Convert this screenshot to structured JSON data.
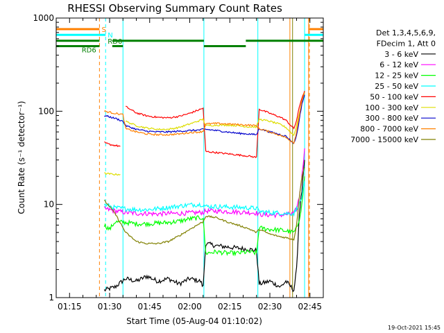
{
  "chart_data": {
    "type": "line",
    "title": "RHESSI Observing Summary Count Rates",
    "xlabel": "Start Time (05-Aug-04 01:10:02)",
    "ylabel": "Count Rate (s⁻¹ detector⁻¹)",
    "yscale": "log",
    "ylim": [
      1,
      1000
    ],
    "xlim_min": [
      70,
      170
    ],
    "x_ticks": [
      {
        "min": 75,
        "label": "01:15"
      },
      {
        "min": 90,
        "label": "01:30"
      },
      {
        "min": 105,
        "label": "01:45"
      },
      {
        "min": 120,
        "label": "02:00"
      },
      {
        "min": 135,
        "label": "02:15"
      },
      {
        "min": 150,
        "label": "02:30"
      },
      {
        "min": 165,
        "label": "02:45"
      }
    ],
    "y_ticks": [
      {
        "value": 1,
        "label": "1"
      },
      {
        "value": 10,
        "label": "10"
      },
      {
        "value": 100,
        "label": "100"
      },
      {
        "value": 1000,
        "label": "1000"
      }
    ],
    "legend_header": [
      "Det 1,3,4,5,6,9,",
      "FDecim 1, Att 0"
    ],
    "legend_placement": "right",
    "grid": false,
    "series": [
      {
        "name": "3 - 6 keV",
        "color": "#000000",
        "points": [
          [
            87,
            null
          ],
          [
            88,
            1.2
          ],
          [
            92,
            1.3
          ],
          [
            96,
            1.6
          ],
          [
            100,
            1.5
          ],
          [
            104,
            1.7
          ],
          [
            108,
            1.5
          ],
          [
            112,
            1.6
          ],
          [
            116,
            1.4
          ],
          [
            120,
            1.6
          ],
          [
            124,
            1.5
          ],
          [
            125,
            1.3
          ],
          [
            126,
            3.8
          ],
          [
            130,
            3.6
          ],
          [
            134,
            3.5
          ],
          [
            138,
            3.4
          ],
          [
            142,
            3.3
          ],
          [
            145,
            3.2
          ],
          [
            146,
            1.4
          ],
          [
            150,
            1.5
          ],
          [
            154,
            1.3
          ],
          [
            156,
            1.5
          ],
          [
            159,
            1.2
          ],
          [
            160,
            2.0
          ],
          [
            161,
            8.0
          ],
          [
            162,
            14.0
          ],
          [
            163,
            30.0
          ]
        ]
      },
      {
        "name": "6 - 12 keV",
        "color": "#ff00ff",
        "points": [
          [
            87,
            null
          ],
          [
            88,
            9.0
          ],
          [
            92,
            8.5
          ],
          [
            96,
            8.2
          ],
          [
            100,
            8.0
          ],
          [
            104,
            8.0
          ],
          [
            108,
            7.9
          ],
          [
            112,
            8.0
          ],
          [
            116,
            8.0
          ],
          [
            120,
            8.1
          ],
          [
            124,
            8.2
          ],
          [
            125,
            8.2
          ],
          [
            126,
            8.5
          ],
          [
            130,
            8.5
          ],
          [
            134,
            8.4
          ],
          [
            138,
            8.3
          ],
          [
            142,
            8.2
          ],
          [
            145,
            8.1
          ],
          [
            146,
            7.8
          ],
          [
            150,
            7.7
          ],
          [
            154,
            7.7
          ],
          [
            156,
            7.8
          ],
          [
            159,
            8.0
          ],
          [
            160,
            9.0
          ],
          [
            161,
            12.0
          ],
          [
            162,
            20.0
          ],
          [
            163,
            40.0
          ]
        ]
      },
      {
        "name": "12 - 25 keV",
        "color": "#00ff00",
        "points": [
          [
            87,
            null
          ],
          [
            88,
            6.0
          ],
          [
            90,
            5.4
          ],
          [
            92,
            6.5
          ],
          [
            96,
            6.4
          ],
          [
            100,
            6.2
          ],
          [
            104,
            6.2
          ],
          [
            108,
            6.3
          ],
          [
            112,
            6.4
          ],
          [
            116,
            6.6
          ],
          [
            120,
            7.0
          ],
          [
            124,
            7.2
          ],
          [
            125,
            7.2
          ],
          [
            126,
            3.0
          ],
          [
            130,
            3.1
          ],
          [
            134,
            3.0
          ],
          [
            138,
            3.0
          ],
          [
            142,
            3.1
          ],
          [
            145,
            3.0
          ],
          [
            146,
            5.6
          ],
          [
            150,
            5.4
          ],
          [
            154,
            5.3
          ],
          [
            156,
            5.2
          ],
          [
            159,
            5.0
          ],
          [
            160,
            5.5
          ],
          [
            161,
            7.0
          ],
          [
            162,
            10.0
          ],
          [
            163,
            20.0
          ]
        ]
      },
      {
        "name": "25 - 50 keV",
        "color": "#00ffff",
        "points": [
          [
            87,
            null
          ],
          [
            88,
            10.0
          ],
          [
            92,
            9.2
          ],
          [
            96,
            9.0
          ],
          [
            100,
            8.8
          ],
          [
            104,
            8.8
          ],
          [
            108,
            9.0
          ],
          [
            112,
            9.3
          ],
          [
            116,
            9.6
          ],
          [
            120,
            9.9
          ],
          [
            124,
            10.0
          ],
          [
            125,
            10.0
          ],
          [
            126,
            9.5
          ],
          [
            130,
            9.5
          ],
          [
            134,
            9.4
          ],
          [
            138,
            9.3
          ],
          [
            142,
            9.2
          ],
          [
            145,
            9.1
          ],
          [
            146,
            8.4
          ],
          [
            150,
            8.2
          ],
          [
            154,
            8.1
          ],
          [
            156,
            8.0
          ],
          [
            159,
            8.0
          ],
          [
            160,
            9.0
          ],
          [
            161,
            10.0
          ],
          [
            162,
            12.0
          ],
          [
            163,
            18.0
          ]
        ]
      },
      {
        "name": "50 - 100 keV",
        "color": "#ff0000",
        "points": [
          [
            87,
            null
          ],
          [
            88,
            46.0
          ],
          [
            90,
            44.0
          ],
          [
            92,
            43.0
          ],
          [
            94,
            42.0
          ],
          [
            95,
            null
          ],
          [
            96,
            112.0
          ],
          [
            100,
            96.0
          ],
          [
            104,
            89.0
          ],
          [
            108,
            86.0
          ],
          [
            112,
            85.0
          ],
          [
            116,
            88.0
          ],
          [
            120,
            95.0
          ],
          [
            124,
            105.0
          ],
          [
            125,
            108.0
          ],
          [
            126,
            37.0
          ],
          [
            130,
            36.0
          ],
          [
            134,
            35.0
          ],
          [
            138,
            34.0
          ],
          [
            142,
            33.0
          ],
          [
            145,
            32.0
          ],
          [
            146,
            105.0
          ],
          [
            150,
            95.0
          ],
          [
            154,
            86.0
          ],
          [
            156,
            80.0
          ],
          [
            159,
            65.0
          ],
          [
            160,
            80.0
          ],
          [
            161,
            110.0
          ],
          [
            162,
            140.0
          ],
          [
            163,
            165.0
          ]
        ]
      },
      {
        "name": "100 - 300 keV",
        "color": "#dddd00",
        "points": [
          [
            87,
            null
          ],
          [
            88,
            21.5
          ],
          [
            92,
            21.0
          ],
          [
            94,
            21.0
          ],
          [
            95,
            null
          ],
          [
            96,
            78.0
          ],
          [
            100,
            70.0
          ],
          [
            104,
            66.0
          ],
          [
            108,
            64.0
          ],
          [
            112,
            64.0
          ],
          [
            116,
            67.0
          ],
          [
            120,
            73.0
          ],
          [
            124,
            80.0
          ],
          [
            125,
            82.0
          ],
          [
            126,
            70.0
          ],
          [
            130,
            71.0
          ],
          [
            134,
            71.0
          ],
          [
            138,
            70.0
          ],
          [
            142,
            68.0
          ],
          [
            145,
            68.0
          ],
          [
            146,
            82.0
          ],
          [
            150,
            78.0
          ],
          [
            154,
            72.0
          ],
          [
            156,
            67.0
          ],
          [
            159,
            55.0
          ],
          [
            160,
            70.0
          ],
          [
            161,
            95.0
          ],
          [
            162,
            130.0
          ],
          [
            163,
            155.0
          ]
        ]
      },
      {
        "name": "300 - 800 keV",
        "color": "#0000cc",
        "points": [
          [
            87,
            null
          ],
          [
            88,
            90.0
          ],
          [
            92,
            84.0
          ],
          [
            95,
            78.0
          ],
          [
            96,
            70.0
          ],
          [
            100,
            64.0
          ],
          [
            104,
            61.0
          ],
          [
            108,
            60.0
          ],
          [
            112,
            60.0
          ],
          [
            116,
            61.0
          ],
          [
            120,
            62.0
          ],
          [
            124,
            63.0
          ],
          [
            125,
            64.0
          ],
          [
            126,
            64.0
          ],
          [
            130,
            62.0
          ],
          [
            134,
            60.0
          ],
          [
            138,
            58.0
          ],
          [
            142,
            57.0
          ],
          [
            145,
            56.0
          ],
          [
            146,
            65.0
          ],
          [
            150,
            60.0
          ],
          [
            154,
            56.0
          ],
          [
            156,
            54.0
          ],
          [
            159,
            45.0
          ],
          [
            160,
            55.0
          ],
          [
            161,
            80.0
          ],
          [
            162,
            120.0
          ],
          [
            163,
            150.0
          ]
        ]
      },
      {
        "name": "800 - 7000 keV",
        "color": "#ff8000",
        "points": [
          [
            87,
            null
          ],
          [
            88,
            100.0
          ],
          [
            92,
            95.0
          ],
          [
            95,
            92.0
          ],
          [
            96,
            65.0
          ],
          [
            100,
            60.0
          ],
          [
            104,
            57.0
          ],
          [
            108,
            56.0
          ],
          [
            112,
            56.0
          ],
          [
            116,
            57.0
          ],
          [
            120,
            59.0
          ],
          [
            124,
            60.0
          ],
          [
            125,
            61.0
          ],
          [
            126,
            73.0
          ],
          [
            130,
            74.0
          ],
          [
            134,
            73.0
          ],
          [
            138,
            72.0
          ],
          [
            142,
            71.0
          ],
          [
            145,
            70.0
          ],
          [
            146,
            65.0
          ],
          [
            150,
            60.0
          ],
          [
            154,
            55.0
          ],
          [
            156,
            52.0
          ],
          [
            159,
            46.0
          ],
          [
            160,
            60.0
          ],
          [
            161,
            90.0
          ],
          [
            162,
            130.0
          ],
          [
            163,
            160.0
          ]
        ]
      },
      {
        "name": "7000 - 15000 keV",
        "color": "#808000",
        "points": [
          [
            87,
            null
          ],
          [
            88,
            11.0
          ],
          [
            90,
            9.5
          ],
          [
            92,
            8.0
          ],
          [
            96,
            5.0
          ],
          [
            100,
            4.0
          ],
          [
            104,
            3.8
          ],
          [
            108,
            3.8
          ],
          [
            112,
            4.0
          ],
          [
            116,
            4.6
          ],
          [
            120,
            5.4
          ],
          [
            124,
            6.3
          ],
          [
            125,
            6.5
          ],
          [
            126,
            7.5
          ],
          [
            130,
            7.2
          ],
          [
            134,
            6.5
          ],
          [
            138,
            6.0
          ],
          [
            142,
            5.5
          ],
          [
            145,
            5.0
          ],
          [
            146,
            5.4
          ],
          [
            150,
            4.8
          ],
          [
            154,
            4.5
          ],
          [
            156,
            4.4
          ],
          [
            159,
            4.2
          ],
          [
            160,
            6.0
          ],
          [
            161,
            12.0
          ],
          [
            162,
            20.0
          ],
          [
            163,
            25.0
          ]
        ]
      }
    ],
    "vertical_markers": [
      {
        "min": 86.2,
        "color": "#ff8000",
        "style": "dashed"
      },
      {
        "min": 88.5,
        "color": "#00ffff",
        "style": "dashed"
      },
      {
        "min": 95.0,
        "color": "#00ffff",
        "style": "solid"
      },
      {
        "min": 125.3,
        "color": "#00ffff",
        "style": "solid"
      },
      {
        "min": 145.5,
        "color": "#00ffff",
        "style": "solid"
      },
      {
        "min": 157.5,
        "color": "#ff8000",
        "style": "solid"
      },
      {
        "min": 163.0,
        "color": "#00ffff",
        "style": "solid"
      },
      {
        "min": 164.5,
        "color": "#ff8000",
        "style": "solid"
      },
      {
        "min": 164.8,
        "color": "#ff8000",
        "style": "dashed"
      },
      {
        "min": 158.5,
        "color": "#808000",
        "style": "solid"
      }
    ],
    "status_bars": [
      {
        "label": "S",
        "color": "#ff8000",
        "y": 760,
        "segments": [
          [
            70,
            86.2
          ],
          [
            164.5,
            170
          ]
        ]
      },
      {
        "label": "N",
        "color": "#00ffff",
        "y": 660,
        "segments": [
          [
            70,
            88.5
          ],
          [
            163,
            170
          ]
        ]
      },
      {
        "label": "RD0",
        "color": "#008000",
        "y": 570,
        "segments": [
          [
            70,
            86.2
          ],
          [
            91,
            125.3
          ],
          [
            141,
            170
          ]
        ]
      },
      {
        "label": "RD6",
        "color": "#008000",
        "y": 500,
        "segments": [
          [
            70,
            86.2
          ],
          [
            91,
            95.0
          ],
          [
            125.3,
            141
          ]
        ]
      }
    ],
    "footer": "19-Oct-2021 15:45"
  }
}
